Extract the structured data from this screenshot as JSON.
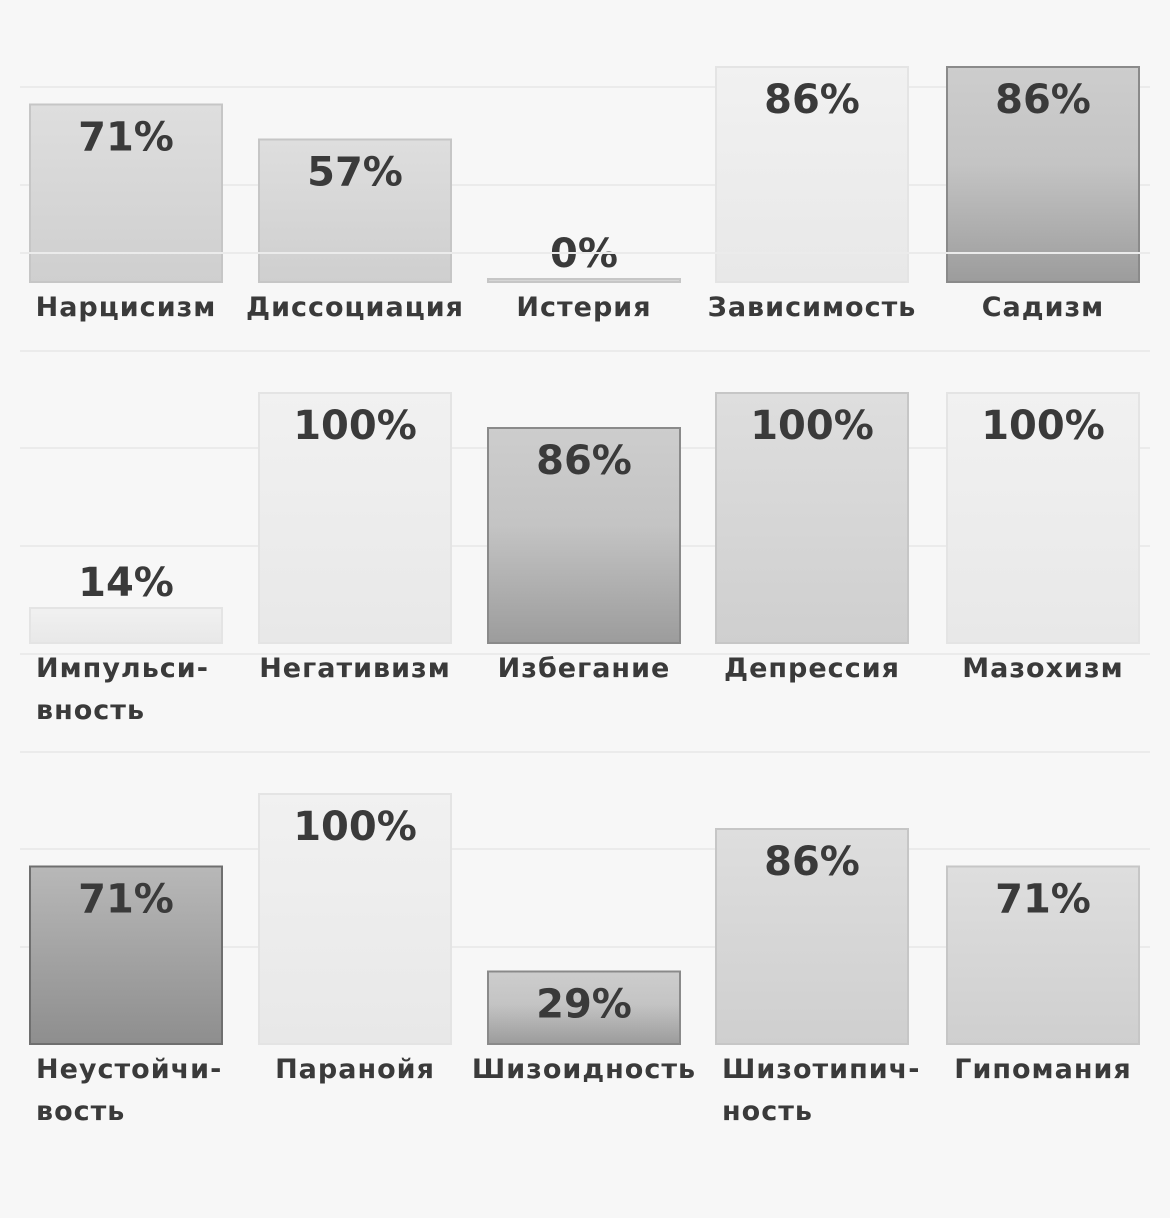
{
  "chart_data": [
    {
      "type": "bar",
      "categories": [
        "Нарцисизм",
        "Диссоциация",
        "Истерия",
        "Зависимость",
        "Садизм"
      ],
      "values": [
        71,
        57,
        0,
        86,
        86
      ],
      "value_labels": [
        "71%",
        "57%",
        "0%",
        "86%",
        "86%"
      ],
      "shades": [
        "light",
        "light",
        "light",
        "pale",
        "dark"
      ],
      "ylim": [
        0,
        100
      ],
      "grid": true
    },
    {
      "type": "bar",
      "categories": [
        "Импульси-|вность",
        "Негативизм",
        "Избегание",
        "Депрессия",
        "Мазохизм"
      ],
      "values": [
        14,
        100,
        86,
        100,
        100
      ],
      "value_labels": [
        "14%",
        "100%",
        "86%",
        "100%",
        "100%"
      ],
      "shades": [
        "pale",
        "pale",
        "dark",
        "light",
        "pale"
      ],
      "ylim": [
        0,
        100
      ],
      "grid": true
    },
    {
      "type": "bar",
      "categories": [
        "Неустойчи-|вость",
        "Паранойя",
        "Шизоидность",
        "Шизотипич-|ность",
        "Гипомания"
      ],
      "values": [
        71,
        100,
        29,
        86,
        71
      ],
      "value_labels": [
        "71%",
        "100%",
        "29%",
        "86%",
        "71%"
      ],
      "shades": [
        "darker",
        "pale",
        "dark",
        "light",
        "light"
      ],
      "ylim": [
        0,
        100
      ],
      "grid": true
    }
  ]
}
